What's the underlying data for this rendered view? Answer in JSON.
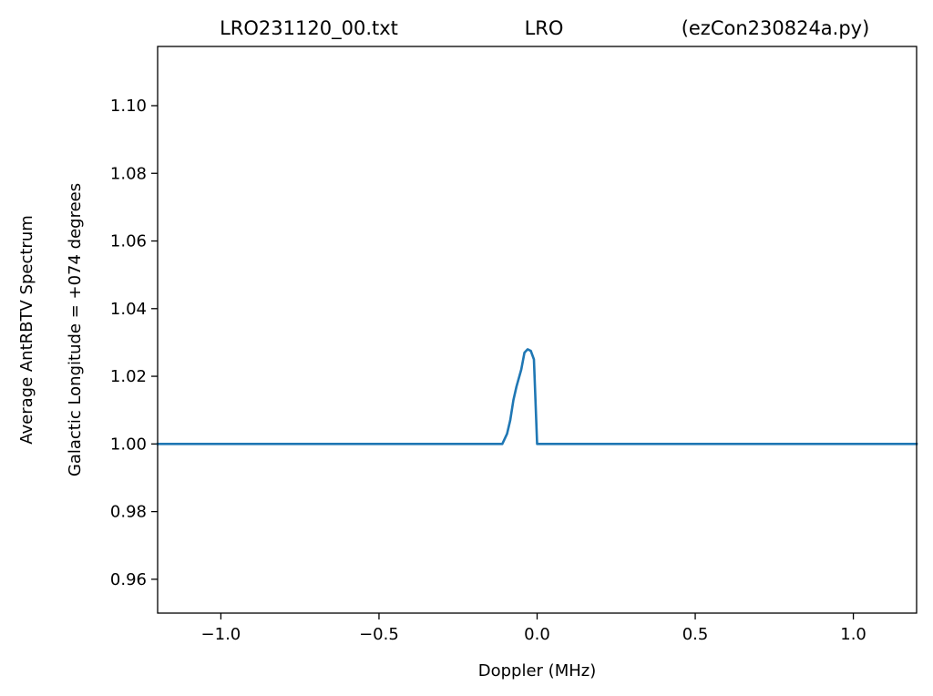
{
  "chart_data": {
    "type": "line",
    "title": {
      "left": "LRO231120_00.txt",
      "center": "LRO",
      "right": "(ezCon230824a.py)"
    },
    "xlabel": "Doppler (MHz)",
    "ylabel": "Average AntRBTV Spectrum",
    "ylabel2": "Galactic Longitude = +074 degrees",
    "xlim": [
      -1.2,
      1.2
    ],
    "ylim": [
      0.95,
      1.1175
    ],
    "x_ticks": [
      -1.0,
      -0.5,
      0.0,
      0.5,
      1.0
    ],
    "x_tick_labels": [
      "−1.0",
      "−0.5",
      "0.0",
      "0.5",
      "1.0"
    ],
    "y_ticks": [
      0.96,
      0.98,
      1.0,
      1.02,
      1.04,
      1.06,
      1.08,
      1.1
    ],
    "y_tick_labels": [
      "0.96",
      "0.98",
      "1.00",
      "1.02",
      "1.04",
      "1.06",
      "1.08",
      "1.10"
    ],
    "grid": false,
    "line_color": "#1f77b4",
    "series": [
      {
        "x": [
          -1.2,
          -0.11,
          -0.095,
          -0.085,
          -0.075,
          -0.065,
          -0.05,
          -0.04,
          -0.03,
          -0.02,
          -0.01,
          0.0,
          0.002,
          1.2
        ],
        "y": [
          1.0,
          1.0,
          1.003,
          1.007,
          1.013,
          1.017,
          1.022,
          1.027,
          1.028,
          1.0275,
          1.025,
          1.0,
          1.0,
          1.0
        ]
      }
    ]
  }
}
